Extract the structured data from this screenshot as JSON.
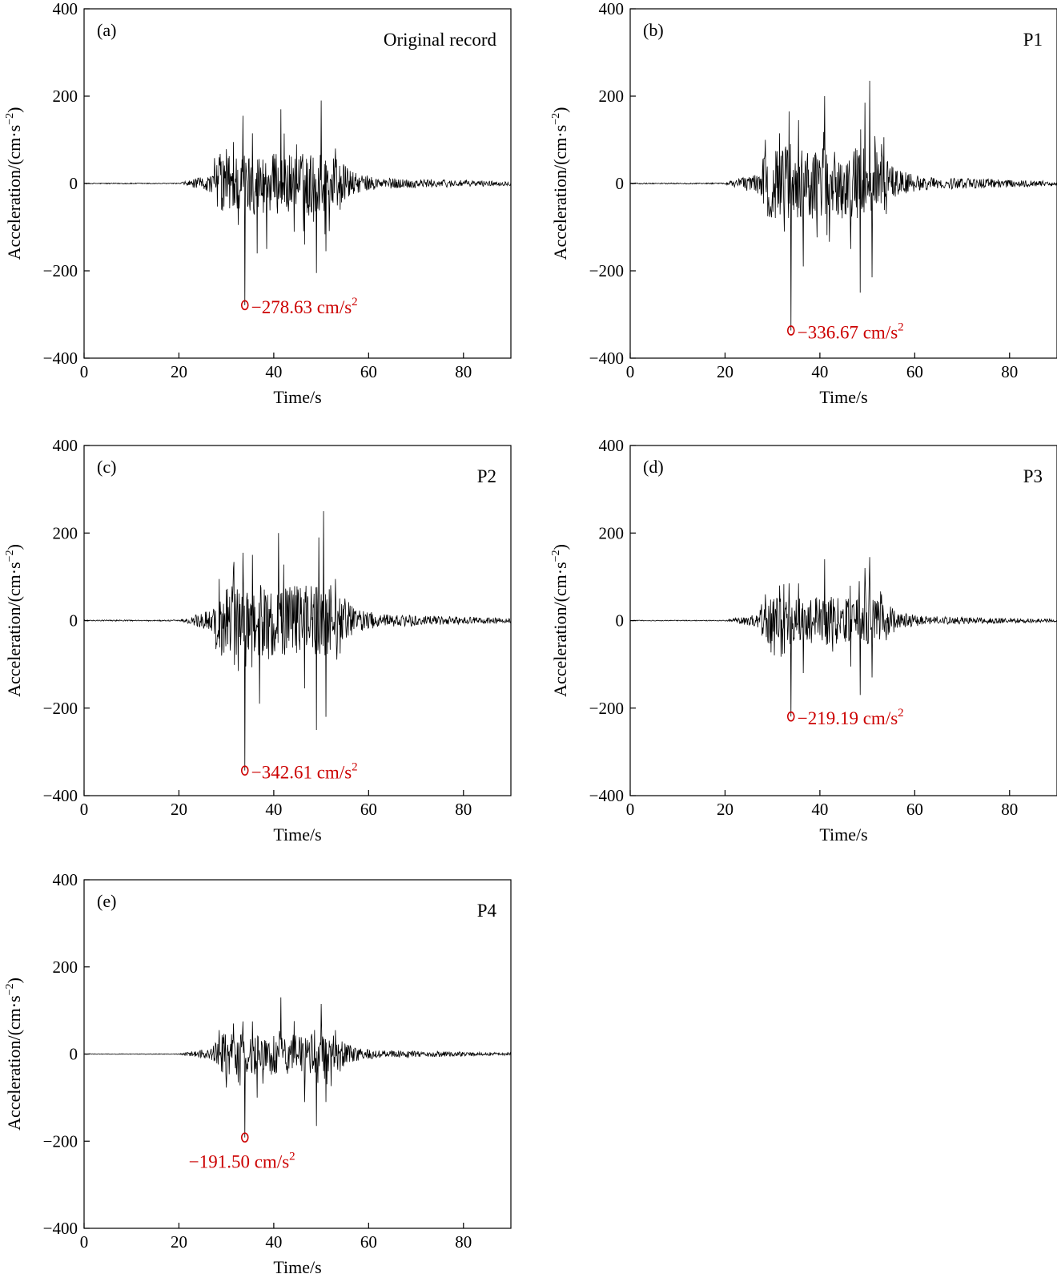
{
  "chart_data": [
    {
      "type": "line",
      "panel_label": "(a)",
      "record_label": "Original record",
      "xlabel": "Time/s",
      "ylabel_text": "Acceleration/(cm·s",
      "ylabel_exp": "−2",
      "ylabel_close": ")",
      "xlim": [
        0,
        90
      ],
      "ylim": [
        -400,
        400
      ],
      "xticks": [
        "0",
        "20",
        "40",
        "60",
        "80"
      ],
      "yticks": [
        "-400",
        "-200",
        "0",
        "200",
        "400"
      ],
      "peak": {
        "t": 33.9,
        "value": -278.63,
        "label": "−278.63 cm/s",
        "label_exp": "2"
      },
      "envelope_scale": 1.0,
      "spikes": [
        [
          28.5,
          60
        ],
        [
          29,
          -60
        ],
        [
          31.5,
          95
        ],
        [
          32.5,
          -95
        ],
        [
          33.5,
          155
        ],
        [
          33.9,
          -278.63
        ],
        [
          35.5,
          115
        ],
        [
          36.5,
          -160
        ],
        [
          38.5,
          -150
        ],
        [
          41.5,
          170
        ],
        [
          46.5,
          -140
        ],
        [
          49,
          -205
        ],
        [
          50,
          190
        ],
        [
          51,
          -155
        ],
        [
          53,
          80
        ],
        [
          54,
          -60
        ]
      ]
    },
    {
      "type": "line",
      "panel_label": "(b)",
      "record_label": "P1",
      "xlabel": "Time/s",
      "ylabel_text": "Acceleration/(cm·s",
      "ylabel_exp": "−2",
      "ylabel_close": ")",
      "xlim": [
        0,
        90
      ],
      "ylim": [
        -400,
        400
      ],
      "xticks": [
        "0",
        "20",
        "40",
        "60",
        "80"
      ],
      "yticks": [
        "-400",
        "-200",
        "0",
        "200",
        "400"
      ],
      "peak": {
        "t": 33.9,
        "value": -336.67,
        "label": "−336.67 cm/s",
        "label_exp": "2"
      },
      "envelope_scale": 1.15,
      "spikes": [
        [
          28.5,
          100
        ],
        [
          29,
          -75
        ],
        [
          31.5,
          115
        ],
        [
          32.5,
          -110
        ],
        [
          33.5,
          165
        ],
        [
          33.9,
          -336.67
        ],
        [
          35.5,
          145
        ],
        [
          36.5,
          -190
        ],
        [
          41,
          200
        ],
        [
          46.5,
          -150
        ],
        [
          48.5,
          -250
        ],
        [
          49.5,
          185
        ],
        [
          50.5,
          235
        ],
        [
          51,
          -215
        ],
        [
          53,
          90
        ],
        [
          54,
          -70
        ]
      ]
    },
    {
      "type": "line",
      "panel_label": "(c)",
      "record_label": "P2",
      "xlabel": "Time/s",
      "ylabel_text": "Acceleration/(cm·s",
      "ylabel_exp": "−2",
      "ylabel_close": ")",
      "xlim": [
        0,
        90
      ],
      "ylim": [
        -400,
        400
      ],
      "xticks": [
        "0",
        "20",
        "40",
        "60",
        "80"
      ],
      "yticks": [
        "-400",
        "-200",
        "0",
        "200",
        "400"
      ],
      "peak": {
        "t": 33.9,
        "value": -342.61,
        "label": "−342.61 cm/s",
        "label_exp": "2"
      },
      "envelope_scale": 1.18,
      "spikes": [
        [
          28.5,
          95
        ],
        [
          29,
          -80
        ],
        [
          31.5,
          120
        ],
        [
          32.5,
          -115
        ],
        [
          33.5,
          155
        ],
        [
          33.9,
          -342.61
        ],
        [
          35.5,
          150
        ],
        [
          37,
          -190
        ],
        [
          41,
          200
        ],
        [
          46.5,
          -155
        ],
        [
          49,
          -250
        ],
        [
          49.5,
          190
        ],
        [
          50.5,
          250
        ],
        [
          51,
          -220
        ],
        [
          53,
          95
        ],
        [
          54,
          -75
        ]
      ]
    },
    {
      "type": "line",
      "panel_label": "(d)",
      "record_label": "P3",
      "xlabel": "Time/s",
      "ylabel_text": "Acceleration/(cm·s",
      "ylabel_exp": "−2",
      "ylabel_close": ")",
      "xlim": [
        0,
        90
      ],
      "ylim": [
        -400,
        400
      ],
      "xticks": [
        "0",
        "20",
        "40",
        "60",
        "80"
      ],
      "yticks": [
        "-400",
        "-200",
        "0",
        "200",
        "400"
      ],
      "peak": {
        "t": 33.9,
        "value": -219.19,
        "label": "−219.19 cm/s",
        "label_exp": "2"
      },
      "envelope_scale": 0.78,
      "spikes": [
        [
          28.5,
          60
        ],
        [
          29,
          -45
        ],
        [
          31.5,
          80
        ],
        [
          32.5,
          -75
        ],
        [
          33.5,
          85
        ],
        [
          33.9,
          -219.19
        ],
        [
          35.5,
          85
        ],
        [
          36.5,
          -120
        ],
        [
          41,
          140
        ],
        [
          46.5,
          -105
        ],
        [
          48.5,
          -170
        ],
        [
          49.5,
          120
        ],
        [
          50.5,
          145
        ],
        [
          51,
          -130
        ],
        [
          53,
          60
        ],
        [
          54,
          -45
        ]
      ]
    },
    {
      "type": "line",
      "panel_label": "(e)",
      "record_label": "P4",
      "xlabel": "Time/s",
      "ylabel_text": "Acceleration/(cm·s",
      "ylabel_exp": "−2",
      "ylabel_close": ")",
      "xlim": [
        0,
        90
      ],
      "ylim": [
        -400,
        400
      ],
      "xticks": [
        "0",
        "20",
        "40",
        "60",
        "80"
      ],
      "yticks": [
        "-400",
        "-200",
        "0",
        "200",
        "400"
      ],
      "peak": {
        "t": 33.9,
        "value": -191.5,
        "label": "−191.50 cm/s",
        "label_exp": "2"
      },
      "envelope_scale": 0.68,
      "spikes": [
        [
          28.5,
          55
        ],
        [
          29,
          -40
        ],
        [
          31.5,
          70
        ],
        [
          32.5,
          -65
        ],
        [
          33.5,
          75
        ],
        [
          33.9,
          -191.5
        ],
        [
          35.5,
          75
        ],
        [
          36.5,
          -100
        ],
        [
          41.5,
          130
        ],
        [
          46.5,
          -110
        ],
        [
          49,
          -165
        ],
        [
          50,
          115
        ],
        [
          51,
          -110
        ],
        [
          53,
          55
        ],
        [
          54,
          -40
        ]
      ]
    }
  ],
  "colors": {
    "trace": "#000000",
    "annotation": "#cc0000",
    "axes": "#000000"
  }
}
